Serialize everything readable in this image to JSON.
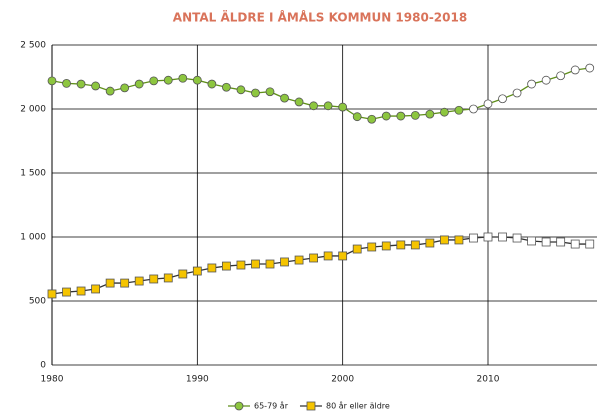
{
  "chart_data": {
    "type": "line",
    "title": "ANTAL ÄLDRE I ÅMÅLS KOMMUN 1980-2018",
    "x": [
      1980,
      1981,
      1982,
      1983,
      1984,
      1985,
      1986,
      1987,
      1988,
      1989,
      1990,
      1991,
      1992,
      1993,
      1994,
      1995,
      1996,
      1997,
      1998,
      1999,
      2000,
      2001,
      2002,
      2003,
      2004,
      2005,
      2006,
      2007,
      2008,
      2009,
      2010,
      2011,
      2012,
      2013,
      2014,
      2015,
      2016,
      2017
    ],
    "series": [
      {
        "name": "65-79 år",
        "color": "#8dc63f",
        "line_color": "#5f8f1a",
        "marker": "circle",
        "values": [
          2220,
          2200,
          2195,
          2180,
          2140,
          2165,
          2195,
          2220,
          2225,
          2240,
          2225,
          2195,
          2170,
          2150,
          2125,
          2135,
          2085,
          2055,
          2025,
          2025,
          2015,
          1940,
          1920,
          1945,
          1945,
          1950,
          1960,
          1975,
          1990,
          2000,
          2040,
          2080,
          2125,
          2195,
          2225,
          2260,
          2305,
          2320
        ]
      },
      {
        "name": "80 år eller äldre",
        "color": "#f5c400",
        "line_color": "#333333",
        "marker": "square",
        "values": [
          555,
          570,
          578,
          594,
          640,
          640,
          656,
          672,
          680,
          711,
          734,
          758,
          773,
          781,
          789,
          789,
          805,
          820,
          836,
          852,
          852,
          906,
          922,
          930,
          938,
          938,
          953,
          977,
          977,
          992,
          1000,
          1000,
          992,
          969,
          961,
          961,
          945,
          945
        ]
      }
    ],
    "hollow_from_x": 2009,
    "xlim": [
      1980,
      2017.5
    ],
    "xticks": [
      1980,
      1990,
      2000,
      2010
    ],
    "ylim": [
      0,
      2500
    ],
    "yticks": [
      0,
      500,
      {
        "value": 1000,
        "label": "1 000"
      },
      {
        "value": 1500,
        "label": "1 500"
      },
      {
        "value": 2000,
        "label": "2 000"
      },
      {
        "value": 2500,
        "label": "2 500"
      }
    ],
    "grid": true,
    "legend": "bottom"
  }
}
